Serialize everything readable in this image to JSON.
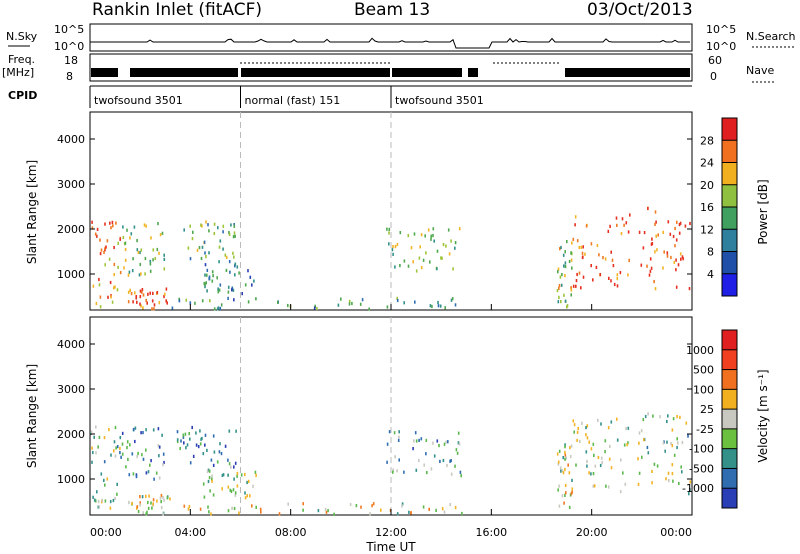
{
  "header": {
    "station": "Rankin Inlet (fitACF)",
    "beam": "Beam 13",
    "date": "03/Oct/2013"
  },
  "strip": {
    "nsky_label": "N.Sky",
    "nsearch_label": "N.Search",
    "nave_label": "Nave",
    "freq_label_1": "Freq.",
    "freq_label_2": "[MHz]",
    "cpid_label": "CPID",
    "nsky_ticks": [
      "10^5",
      "10^0"
    ],
    "nsearch_ticks": [
      "10^5",
      "10^0"
    ],
    "freq_ticks": [
      "18",
      "8"
    ],
    "nave_ticks": [
      "60",
      "0"
    ],
    "cpid_segments": [
      {
        "label": "twofsound 3501",
        "start": 0,
        "end": 6
      },
      {
        "label": "normal (fast) 151",
        "start": 6,
        "end": 12
      },
      {
        "label": "twofsound 3501",
        "start": 12,
        "end": 24
      }
    ]
  },
  "time_axis": {
    "label": "Time UT",
    "ticks": [
      "00:00",
      "04:00",
      "08:00",
      "12:00",
      "16:00",
      "20:00",
      "00:00"
    ]
  },
  "chart_data": [
    {
      "type": "heatmap",
      "ylabel": "Slant Range [km]",
      "yticks": [
        "1000",
        "2000",
        "3000",
        "4000"
      ],
      "ylim": [
        200,
        4600
      ],
      "xlim_hours": [
        0,
        24
      ],
      "colorbar_label": "Power [dB]",
      "colorbar_ticks": [
        "4",
        "8",
        "12",
        "16",
        "20",
        "24",
        "28"
      ],
      "colorbar_colors": [
        "#1f1fe6",
        "#1f4fa8",
        "#2f7f9f",
        "#3fa05f",
        "#8fc040",
        "#f0b020",
        "#f07020",
        "#e02020"
      ],
      "palette": [
        "#2a3fb5",
        "#2f6db0",
        "#33918a",
        "#4fa84f",
        "#9ec43a",
        "#f2b424",
        "#f07a22",
        "#e63020"
      ],
      "scale": "power",
      "clusters": [
        {
          "t0": 0.0,
          "t1": 1.2,
          "r0": 300,
          "r1": 2200,
          "level": 0.8
        },
        {
          "t0": 1.2,
          "t1": 3.0,
          "r0": 1000,
          "r1": 2200,
          "level": 0.5
        },
        {
          "t0": 1.5,
          "t1": 3.2,
          "r0": 250,
          "r1": 700,
          "level": 0.9
        },
        {
          "t0": 3.4,
          "t1": 5.8,
          "r0": 1300,
          "r1": 2200,
          "level": 0.45
        },
        {
          "t0": 4.5,
          "t1": 6.6,
          "r0": 600,
          "r1": 1300,
          "level": 0.3
        },
        {
          "t0": 3.0,
          "t1": 14.8,
          "r0": 250,
          "r1": 500,
          "level": 0.35
        },
        {
          "t0": 11.8,
          "t1": 14.8,
          "r0": 1100,
          "r1": 2100,
          "level": 0.5
        },
        {
          "t0": 18.6,
          "t1": 19.2,
          "r0": 300,
          "r1": 1800,
          "level": 0.55
        },
        {
          "t0": 19.2,
          "t1": 21.5,
          "r0": 700,
          "r1": 2400,
          "level": 0.9
        },
        {
          "t0": 21.8,
          "t1": 23.9,
          "r0": 700,
          "r1": 2500,
          "level": 0.9
        }
      ]
    },
    {
      "type": "heatmap",
      "ylabel": "Slant Range [km]",
      "yticks": [
        "1000",
        "2000",
        "3000",
        "4000"
      ],
      "ylim": [
        200,
        4600
      ],
      "xlim_hours": [
        0,
        24
      ],
      "colorbar_label": "Velocity [m s⁻¹]",
      "colorbar_ticks": [
        "1000",
        "500",
        "100",
        "25",
        "-25",
        "-100",
        "-500",
        "-1000"
      ],
      "colorbar_colors": [
        "#2a3fb5",
        "#2f6db0",
        "#33918a",
        "#6cc040",
        "#c8c8c0",
        "#f0b020",
        "#f07020",
        "#f04020",
        "#e02020"
      ],
      "palette": [
        "#2a3fb5",
        "#2f6db0",
        "#33918a",
        "#5cb84c",
        "#c9c9c1",
        "#f2b424",
        "#f07a22",
        "#e63020"
      ],
      "scale": "velocity",
      "clusters": [
        {
          "t0": 0.0,
          "t1": 1.2,
          "r0": 300,
          "r1": 2200,
          "level": 0.45
        },
        {
          "t0": 1.2,
          "t1": 3.0,
          "r0": 1000,
          "r1": 2200,
          "level": 0.3
        },
        {
          "t0": 1.5,
          "t1": 3.2,
          "r0": 250,
          "r1": 700,
          "level": 0.55
        },
        {
          "t0": 3.4,
          "t1": 5.8,
          "r0": 1300,
          "r1": 2200,
          "level": 0.25
        },
        {
          "t0": 4.5,
          "t1": 6.6,
          "r0": 600,
          "r1": 1300,
          "level": 0.5
        },
        {
          "t0": 3.0,
          "t1": 14.8,
          "r0": 250,
          "r1": 500,
          "level": 0.6
        },
        {
          "t0": 11.8,
          "t1": 14.8,
          "r0": 1100,
          "r1": 2100,
          "level": 0.35
        },
        {
          "t0": 18.6,
          "t1": 19.2,
          "r0": 300,
          "r1": 1800,
          "level": 0.55
        },
        {
          "t0": 19.2,
          "t1": 21.5,
          "r0": 700,
          "r1": 2400,
          "level": 0.5
        },
        {
          "t0": 21.8,
          "t1": 23.9,
          "r0": 700,
          "r1": 2500,
          "level": 0.45
        }
      ]
    }
  ]
}
